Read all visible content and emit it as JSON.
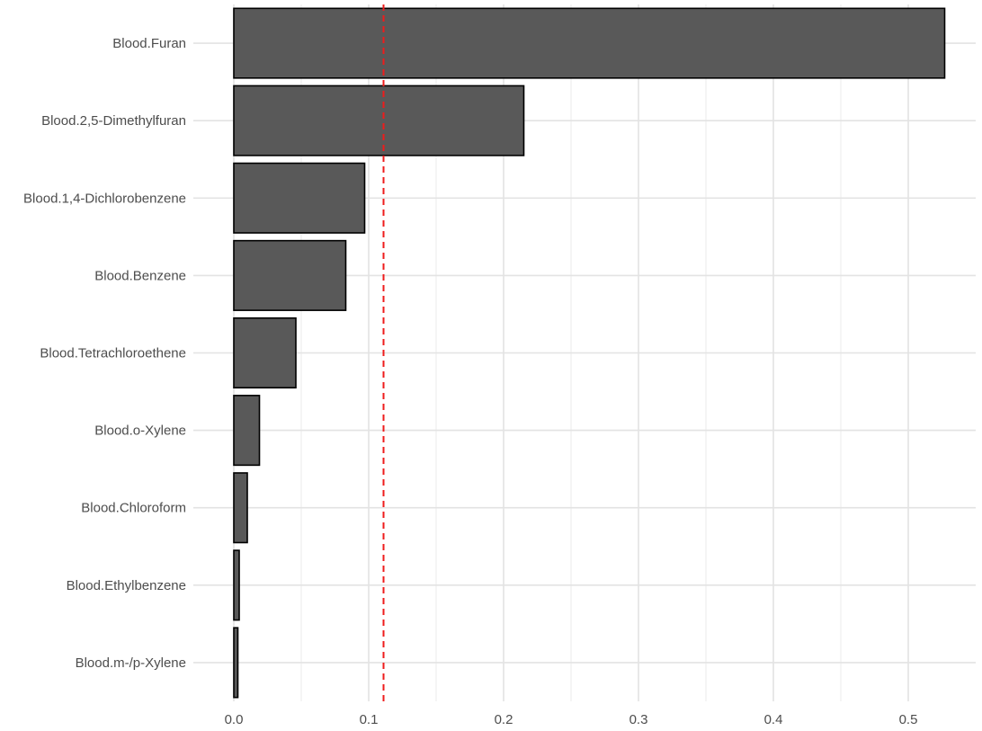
{
  "chart_data": {
    "type": "bar",
    "orientation": "horizontal",
    "title": "",
    "xlabel": "",
    "ylabel": "",
    "categories": [
      "Blood.Furan",
      "Blood.2,5-Dimethylfuran",
      "Blood.1,4-Dichlorobenzene",
      "Blood.Benzene",
      "Blood.Tetrachloroethene",
      "Blood.o-Xylene",
      "Blood.Chloroform",
      "Blood.Ethylbenzene",
      "Blood.m-/p-Xylene"
    ],
    "values": [
      0.527,
      0.215,
      0.097,
      0.083,
      0.046,
      0.019,
      0.01,
      0.004,
      0.003
    ],
    "xlim": [
      -0.03,
      0.55
    ],
    "x_ticks": [
      0.0,
      0.1,
      0.2,
      0.3,
      0.4,
      0.5
    ],
    "x_tick_labels": [
      "0.0",
      "0.1",
      "0.2",
      "0.3",
      "0.4",
      "0.5"
    ],
    "reference_line": {
      "x": 0.111,
      "style": "dashed",
      "color": "#ee1c1c"
    },
    "bar_fill": "#595959",
    "bar_stroke": "#000000",
    "grid": true,
    "legend": "none"
  }
}
